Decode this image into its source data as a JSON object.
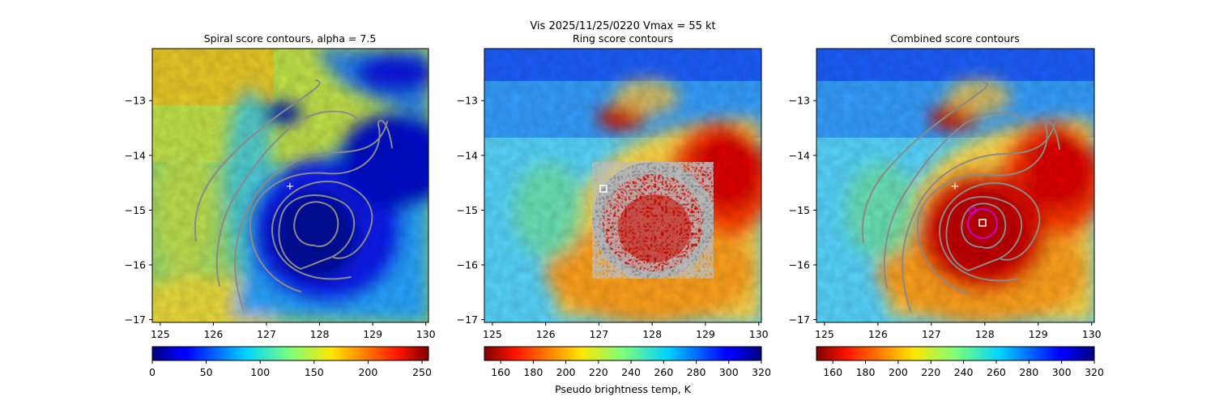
{
  "figure": {
    "suptitle": "Vis  2025/11/25/0220    Vmax = 55 kt",
    "cbar_label": "Pseudo brightness temp, K"
  },
  "chart_data": [
    {
      "type": "heatmap",
      "title": "Spiral score contours, alpha =  7.5",
      "colormap": "jet",
      "x_ticks": [
        125,
        126,
        127,
        128,
        129,
        130
      ],
      "y_ticks": [
        -13,
        -14,
        -15,
        -16,
        -17
      ],
      "xlim": [
        124.85,
        130.05
      ],
      "ylim": [
        -17.05,
        -12.05
      ],
      "center_marker": {
        "symbol": "+",
        "lon": 127.45,
        "lat": -14.58,
        "color": "#ffffff"
      },
      "colorbar": {
        "ticks": [
          0,
          50,
          100,
          150,
          200,
          250
        ],
        "range": [
          0,
          256
        ],
        "cmap": "jet"
      }
    },
    {
      "type": "heatmap",
      "title": "Ring score contours",
      "colormap": "jet_r",
      "x_ticks": [
        125,
        126,
        127,
        128,
        129,
        130
      ],
      "y_ticks": [
        -13,
        -14,
        -15,
        -16,
        -17
      ],
      "xlim": [
        124.85,
        130.05
      ],
      "ylim": [
        -17.05,
        -12.05
      ],
      "ring_marker": {
        "symbol": "square",
        "lon": 127.1,
        "lat": -14.66,
        "color": "#ffffff"
      },
      "colorbar": {
        "ticks": [
          160,
          180,
          200,
          220,
          240,
          260,
          280,
          300,
          320
        ],
        "range": [
          150,
          320
        ],
        "cmap": "jet_r"
      }
    },
    {
      "type": "heatmap",
      "title": "Combined score contours",
      "colormap": "jet_r",
      "x_ticks": [
        125,
        126,
        127,
        128,
        129,
        130
      ],
      "y_ticks": [
        -13,
        -14,
        -15,
        -16,
        -17
      ],
      "xlim": [
        124.85,
        130.05
      ],
      "ylim": [
        -17.05,
        -12.05
      ],
      "center_marker": {
        "symbol": "+",
        "lon": 127.45,
        "lat": -14.58,
        "color": "#ffffff"
      },
      "combined_marker": {
        "symbol": "square",
        "lon": 127.97,
        "lat": -15.28,
        "color": "#ffffff"
      },
      "radius_circle_color": "#cc00cc",
      "colorbar": {
        "ticks": [
          160,
          180,
          200,
          220,
          240,
          260,
          280,
          300,
          320
        ],
        "range": [
          150,
          320
        ],
        "cmap": "jet_r"
      }
    }
  ]
}
